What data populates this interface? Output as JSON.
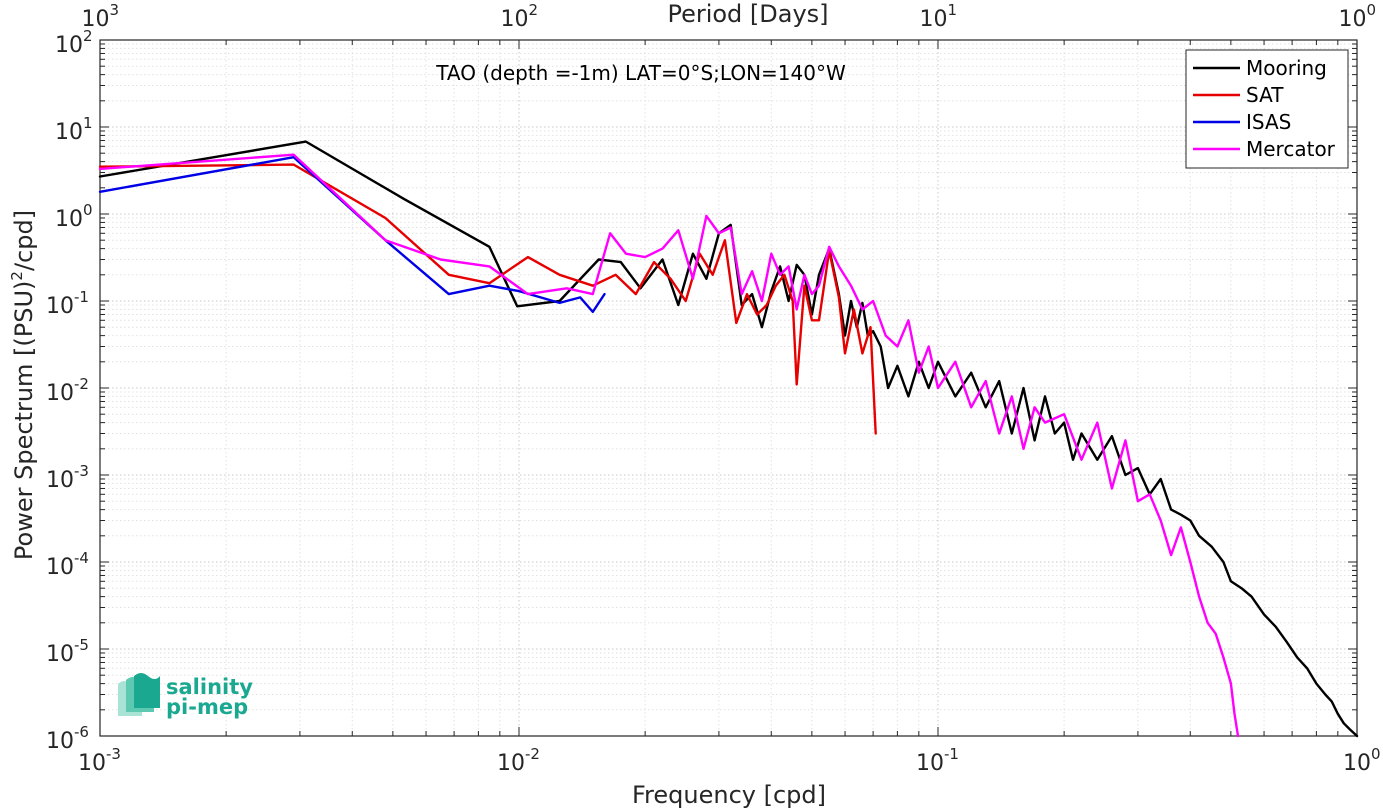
{
  "chart_data": {
    "type": "line",
    "title": "TAO (depth =-1m) LAT=0°S;LON=140°W",
    "xlabel": "Frequency [cpd]",
    "ylabel_main": "Power Spectrum [(PSU)",
    "ylabel_sup": "2",
    "ylabel_tail": "/cpd]",
    "top_xlabel": "Period [Days]",
    "xscale": "log",
    "yscale": "log",
    "xlim": [
      0.001,
      1
    ],
    "ylim": [
      1e-06,
      100
    ],
    "grid": "major and minor, dotted",
    "legend_position": "top-right",
    "x_ticks": [
      {
        "value": 0.001,
        "base": "10",
        "exp": "-3"
      },
      {
        "value": 0.01,
        "base": "10",
        "exp": "-2"
      },
      {
        "value": 0.1,
        "base": "10",
        "exp": "-1"
      },
      {
        "value": 1,
        "base": "10",
        "exp": "0"
      }
    ],
    "y_ticks": [
      {
        "value": 1e-06,
        "base": "10",
        "exp": "-6"
      },
      {
        "value": 1e-05,
        "base": "10",
        "exp": "-5"
      },
      {
        "value": 0.0001,
        "base": "10",
        "exp": "-4"
      },
      {
        "value": 0.001,
        "base": "10",
        "exp": "-3"
      },
      {
        "value": 0.01,
        "base": "10",
        "exp": "-2"
      },
      {
        "value": 0.1,
        "base": "10",
        "exp": "-1"
      },
      {
        "value": 1,
        "base": "10",
        "exp": "0"
      },
      {
        "value": 10,
        "base": "10",
        "exp": "1"
      },
      {
        "value": 100,
        "base": "10",
        "exp": "2"
      }
    ],
    "top_ticks": [
      {
        "freq": 0.001,
        "base": "10",
        "exp": "3"
      },
      {
        "freq": 0.01,
        "base": "10",
        "exp": "2"
      },
      {
        "freq": 0.1,
        "base": "10",
        "exp": "1"
      },
      {
        "freq": 1,
        "base": "10",
        "exp": "0"
      }
    ],
    "series": [
      {
        "name": "Mooring",
        "color": "#000000",
        "x": [
          0.001,
          0.0031,
          0.0053,
          0.0085,
          0.0099,
          0.0125,
          0.0155,
          0.0175,
          0.0195,
          0.022,
          0.024,
          0.026,
          0.028,
          0.03,
          0.032,
          0.034,
          0.036,
          0.038,
          0.04,
          0.042,
          0.044,
          0.046,
          0.048,
          0.05,
          0.052,
          0.055,
          0.058,
          0.06,
          0.062,
          0.064,
          0.066,
          0.068,
          0.07,
          0.073,
          0.076,
          0.08,
          0.085,
          0.09,
          0.095,
          0.1,
          0.11,
          0.12,
          0.13,
          0.14,
          0.15,
          0.16,
          0.17,
          0.18,
          0.19,
          0.2,
          0.21,
          0.22,
          0.24,
          0.26,
          0.28,
          0.3,
          0.32,
          0.34,
          0.36,
          0.38,
          0.4,
          0.42,
          0.45,
          0.48,
          0.5,
          0.53,
          0.56,
          0.6,
          0.64,
          0.68,
          0.72,
          0.76,
          0.8,
          0.84,
          0.87,
          0.9,
          0.93,
          0.96,
          1.0
        ],
        "y": [
          2.7,
          6.8,
          1.5,
          0.42,
          0.087,
          0.1,
          0.3,
          0.28,
          0.14,
          0.3,
          0.09,
          0.35,
          0.18,
          0.6,
          0.75,
          0.09,
          0.12,
          0.05,
          0.13,
          0.25,
          0.1,
          0.26,
          0.2,
          0.07,
          0.2,
          0.4,
          0.12,
          0.04,
          0.1,
          0.05,
          0.095,
          0.04,
          0.045,
          0.03,
          0.01,
          0.018,
          0.008,
          0.02,
          0.01,
          0.02,
          0.008,
          0.015,
          0.006,
          0.012,
          0.003,
          0.01,
          0.0025,
          0.008,
          0.003,
          0.004,
          0.0015,
          0.003,
          0.0015,
          0.0028,
          0.001,
          0.0012,
          0.0006,
          0.0009,
          0.0004,
          0.00035,
          0.0003,
          0.0002,
          0.00015,
          0.0001,
          6e-05,
          5e-05,
          4e-05,
          2.5e-05,
          1.8e-05,
          1.2e-05,
          8e-06,
          6e-06,
          4e-06,
          3e-06,
          2.5e-06,
          1.8e-06,
          1.4e-06,
          1.2e-06,
          1e-06
        ]
      },
      {
        "name": "SAT",
        "color": "#e60000",
        "x": [
          0.001,
          0.0029,
          0.0048,
          0.0068,
          0.0085,
          0.0105,
          0.0125,
          0.015,
          0.017,
          0.019,
          0.021,
          0.023,
          0.025,
          0.027,
          0.029,
          0.031,
          0.033,
          0.035,
          0.037,
          0.039,
          0.041,
          0.043,
          0.045,
          0.046,
          0.048,
          0.05,
          0.052,
          0.055,
          0.058,
          0.06,
          0.063,
          0.066,
          0.069,
          0.071
        ],
        "y": [
          3.5,
          3.7,
          0.9,
          0.2,
          0.16,
          0.32,
          0.2,
          0.15,
          0.2,
          0.12,
          0.28,
          0.18,
          0.1,
          0.35,
          0.2,
          0.5,
          0.056,
          0.12,
          0.07,
          0.09,
          0.15,
          0.2,
          0.1,
          0.011,
          0.15,
          0.06,
          0.06,
          0.38,
          0.11,
          0.025,
          0.08,
          0.025,
          0.05,
          0.003
        ]
      },
      {
        "name": "ISAS",
        "color": "#0000e6",
        "x": [
          0.001,
          0.0029,
          0.0048,
          0.0068,
          0.0085,
          0.01,
          0.0125,
          0.014,
          0.015,
          0.016
        ],
        "y": [
          1.8,
          4.5,
          0.5,
          0.12,
          0.15,
          0.13,
          0.095,
          0.11,
          0.075,
          0.12
        ]
      },
      {
        "name": "Mercator",
        "color": "#ff00ff",
        "x": [
          0.001,
          0.0029,
          0.0048,
          0.0065,
          0.0085,
          0.0105,
          0.013,
          0.015,
          0.0165,
          0.018,
          0.02,
          0.022,
          0.024,
          0.026,
          0.028,
          0.03,
          0.032,
          0.034,
          0.036,
          0.038,
          0.04,
          0.042,
          0.044,
          0.046,
          0.048,
          0.05,
          0.052,
          0.055,
          0.058,
          0.062,
          0.066,
          0.07,
          0.075,
          0.08,
          0.085,
          0.09,
          0.095,
          0.1,
          0.11,
          0.12,
          0.13,
          0.14,
          0.15,
          0.16,
          0.17,
          0.18,
          0.2,
          0.22,
          0.24,
          0.26,
          0.28,
          0.3,
          0.32,
          0.34,
          0.36,
          0.38,
          0.4,
          0.42,
          0.44,
          0.46,
          0.48,
          0.5,
          0.51,
          0.52
        ],
        "y": [
          3.3,
          4.8,
          0.5,
          0.3,
          0.25,
          0.12,
          0.14,
          0.12,
          0.6,
          0.35,
          0.32,
          0.4,
          0.65,
          0.18,
          0.95,
          0.6,
          0.7,
          0.12,
          0.22,
          0.1,
          0.35,
          0.2,
          0.25,
          0.08,
          0.2,
          0.12,
          0.15,
          0.42,
          0.25,
          0.15,
          0.08,
          0.1,
          0.04,
          0.03,
          0.06,
          0.015,
          0.03,
          0.01,
          0.02,
          0.006,
          0.012,
          0.003,
          0.008,
          0.002,
          0.006,
          0.004,
          0.005,
          0.0015,
          0.004,
          0.0007,
          0.0025,
          0.0005,
          0.0006,
          0.0003,
          0.00012,
          0.00025,
          0.0001,
          4e-05,
          2e-05,
          1.5e-05,
          8e-06,
          4e-06,
          1.8e-06,
          1e-06
        ]
      }
    ]
  },
  "logo": {
    "line1": "salinity",
    "line2": "pi-mep",
    "colors": [
      "#1aa890",
      "#5cc9b0",
      "#a8e3d5"
    ]
  }
}
